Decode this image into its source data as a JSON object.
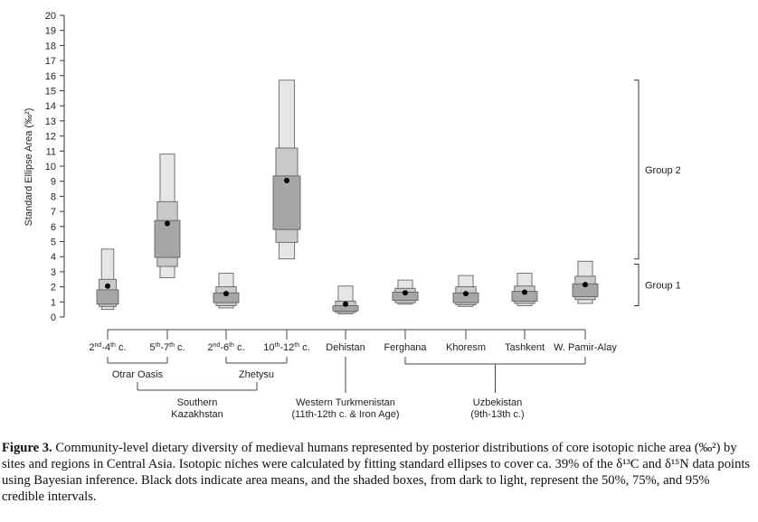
{
  "chart_data": {
    "type": "box",
    "ylabel": "Standard Ellipse Area (‰²)",
    "ylim": [
      0,
      20
    ],
    "yticks": [
      0,
      1,
      2,
      3,
      4,
      5,
      6,
      7,
      8,
      9,
      10,
      11,
      12,
      13,
      14,
      15,
      16,
      17,
      18,
      19,
      20
    ],
    "categories": [
      "2nd-4th c.",
      "5th-7th c.",
      "2nd-6th c.",
      "10th-12th c.",
      "Dehistan",
      "Ferghana",
      "Khoresm",
      "Tashkent",
      "W. Pamir-Alay"
    ],
    "category_labels": [
      {
        "main": "2",
        "sup1": "nd",
        "mid": "-4",
        "sup2": "th",
        "end": " c."
      },
      {
        "main": "5",
        "sup1": "th",
        "mid": "-7",
        "sup2": "th",
        "end": " c."
      },
      {
        "main": "2",
        "sup1": "nd",
        "mid": "-6",
        "sup2": "th",
        "end": " c."
      },
      {
        "main": "10",
        "sup1": "th",
        "mid": "-12",
        "sup2": "th",
        "end": " c."
      },
      {
        "main": "Dehistan"
      },
      {
        "main": "Ferghana"
      },
      {
        "main": "Khoresm"
      },
      {
        "main": "Tashkent"
      },
      {
        "main": "W. Pamir-Alay"
      }
    ],
    "series": [
      {
        "mean": 2.05,
        "ci50": [
          0.85,
          1.8
        ],
        "ci75": [
          0.7,
          2.5
        ],
        "ci95": [
          0.5,
          4.5
        ]
      },
      {
        "mean": 6.2,
        "ci50": [
          3.95,
          6.4
        ],
        "ci75": [
          3.35,
          7.65
        ],
        "ci95": [
          2.6,
          10.8
        ]
      },
      {
        "mean": 1.55,
        "ci50": [
          0.95,
          1.6
        ],
        "ci75": [
          0.75,
          2.0
        ],
        "ci95": [
          0.6,
          2.9
        ]
      },
      {
        "mean": 9.05,
        "ci50": [
          5.8,
          9.35
        ],
        "ci75": [
          4.95,
          11.2
        ],
        "ci95": [
          3.85,
          15.7
        ]
      },
      {
        "mean": 0.85,
        "ci50": [
          0.4,
          0.75
        ],
        "ci75": [
          0.3,
          1.05
        ],
        "ci95": [
          0.2,
          2.05
        ]
      },
      {
        "mean": 1.6,
        "ci50": [
          1.1,
          1.65
        ],
        "ci75": [
          0.95,
          1.9
        ],
        "ci95": [
          0.85,
          2.45
        ]
      },
      {
        "mean": 1.55,
        "ci50": [
          0.95,
          1.6
        ],
        "ci75": [
          0.8,
          2.0
        ],
        "ci95": [
          0.7,
          2.75
        ]
      },
      {
        "mean": 1.65,
        "ci50": [
          1.05,
          1.7
        ],
        "ci75": [
          0.9,
          2.05
        ],
        "ci95": [
          0.75,
          2.9
        ]
      },
      {
        "mean": 2.15,
        "ci50": [
          1.35,
          2.2
        ],
        "ci75": [
          1.15,
          2.7
        ],
        "ci95": [
          0.9,
          3.7
        ]
      }
    ],
    "group_brackets": [
      {
        "label": "Group 2",
        "range": [
          3.85,
          15.7
        ]
      },
      {
        "label": "Group 1",
        "range": [
          0.75,
          3.5
        ]
      }
    ],
    "subgroup_labels": [
      {
        "lines": [
          "Otrar Oasis"
        ]
      },
      {
        "lines": [
          "Zhetysu"
        ]
      },
      {
        "lines": [
          "Southern",
          "Kazakhstan"
        ]
      },
      {
        "lines": [
          "Western Turkmenistan",
          "(11th-12th c. & Iron Age)"
        ]
      },
      {
        "lines": [
          "Uzbekistan",
          "(9th-13th c.)"
        ]
      }
    ],
    "colors": {
      "ci50": "#a6a6a6",
      "ci75": "#c9c9c9",
      "ci95": "#e6e6e6",
      "mean": "#000000",
      "line": "#555555"
    }
  },
  "caption": {
    "label": "Figure 3.",
    "text": "Community-level dietary diversity of medieval humans represented by posterior distributions of core isotopic niche area (‰²) by sites and regions in Central Asia. Isotopic niches were calculated by fitting standard ellipses to cover ca. 39% of the δ¹³C and δ¹⁵N data points using Bayesian inference. Black dots indicate area means, and the shaded boxes, from dark to light, represent the 50%, 75%, and 95% credible intervals."
  }
}
